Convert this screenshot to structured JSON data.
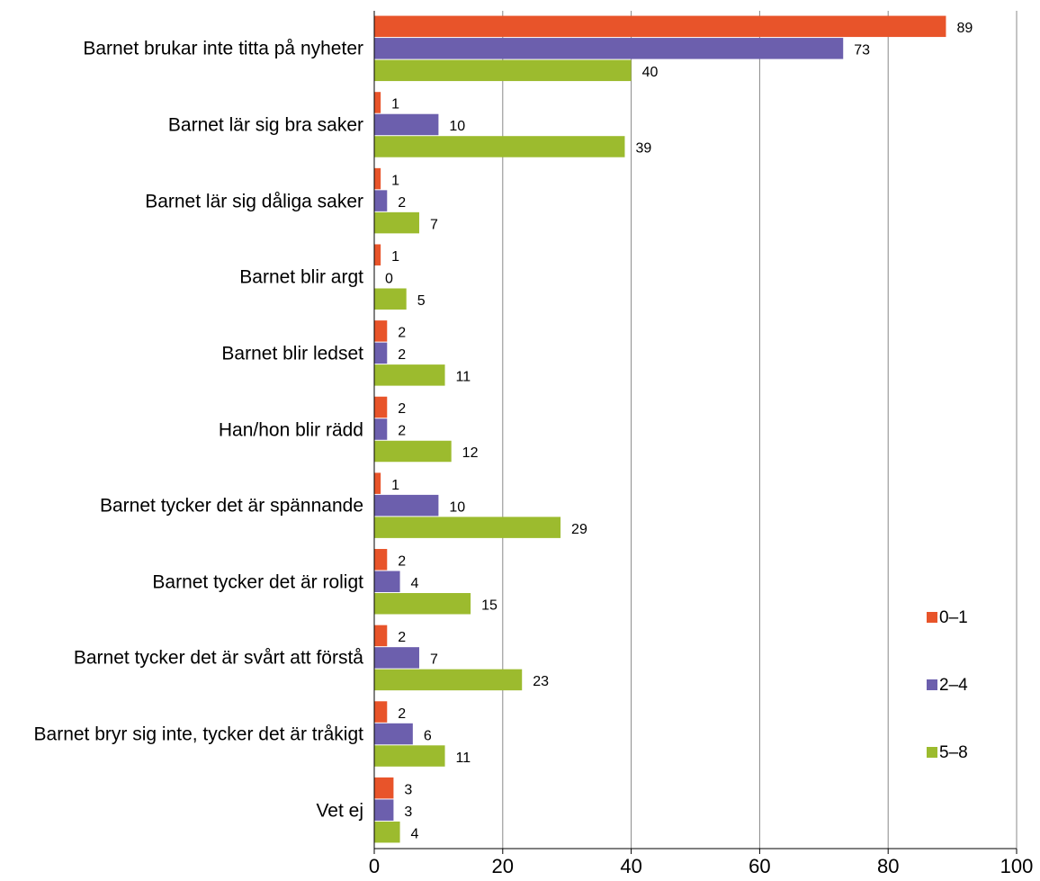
{
  "chart_data": {
    "type": "bar",
    "orientation": "horizontal",
    "categories": [
      "Barnet brukar inte titta på nyheter",
      "Barnet lär sig bra saker",
      "Barnet lär sig dåliga saker",
      "Barnet blir argt",
      "Barnet blir ledset",
      "Han/hon blir rädd",
      "Barnet tycker det är spännande",
      "Barnet tycker det är roligt",
      "Barnet tycker det är svårt att förstå",
      "Barnet bryr sig inte, tycker det är tråkigt",
      "Vet ej"
    ],
    "series": [
      {
        "name": "0–1",
        "color": "#e8542a",
        "values": [
          89,
          1,
          1,
          1,
          2,
          2,
          1,
          2,
          2,
          2,
          3
        ]
      },
      {
        "name": "2–4",
        "color": "#6c5fad",
        "values": [
          73,
          10,
          2,
          0,
          2,
          2,
          10,
          4,
          7,
          6,
          3
        ]
      },
      {
        "name": "5–8",
        "color": "#9cbb2e",
        "values": [
          40,
          39,
          7,
          5,
          11,
          12,
          29,
          15,
          23,
          11,
          4
        ]
      }
    ],
    "xlim": [
      0,
      100
    ],
    "xticks": [
      0,
      20,
      40,
      60,
      80,
      100
    ],
    "grid": true,
    "legend": "right"
  }
}
